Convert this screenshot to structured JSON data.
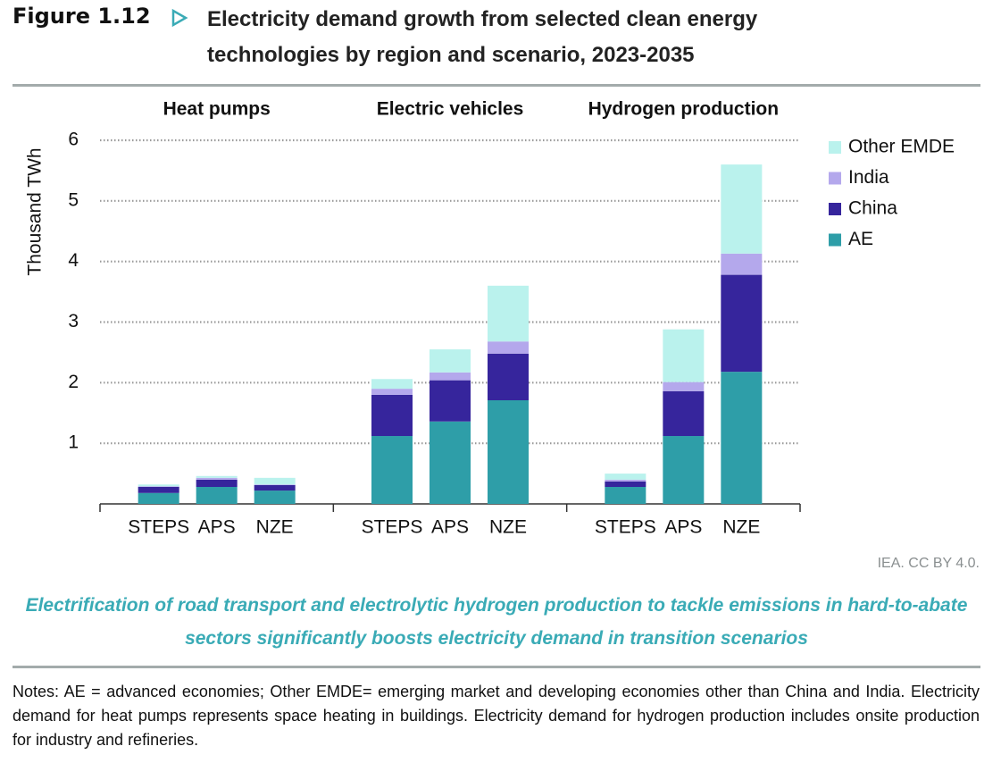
{
  "header": {
    "figure_label": "Figure 1.12",
    "title": "Electricity demand growth from selected clean energy technologies by region and scenario, 2023-2035"
  },
  "chart_data": {
    "type": "bar",
    "stacked": true,
    "groups": [
      "Heat pumps",
      "Electric vehicles",
      "Hydrogen production"
    ],
    "categories": [
      "STEPS",
      "APS",
      "NZE",
      "STEPS",
      "APS",
      "NZE",
      "STEPS",
      "APS",
      "NZE"
    ],
    "series": [
      {
        "name": "AE",
        "color": "#2e9ea8",
        "values": [
          0.18,
          0.28,
          0.22,
          1.12,
          1.36,
          1.71,
          0.28,
          1.12,
          2.18
        ]
      },
      {
        "name": "China",
        "color": "#36259c",
        "values": [
          0.1,
          0.12,
          0.09,
          0.68,
          0.68,
          0.77,
          0.09,
          0.74,
          1.6
        ]
      },
      {
        "name": "India",
        "color": "#b4a8ec",
        "values": [
          0.01,
          0.03,
          0.01,
          0.1,
          0.13,
          0.2,
          0.03,
          0.15,
          0.35
        ]
      },
      {
        "name": "Other EMDE",
        "color": "#baf2ed",
        "values": [
          0.03,
          0.03,
          0.11,
          0.16,
          0.38,
          0.92,
          0.1,
          0.87,
          1.47
        ]
      }
    ],
    "y_label": "Thousand TWh",
    "ylim": [
      0,
      6
    ],
    "yticks": [
      1,
      2,
      3,
      4,
      5,
      6
    ],
    "grid": true,
    "legend": "right"
  },
  "source": "IEA. CC BY 4.0.",
  "caption": "Electrification of road transport and electrolytic hydrogen production to tackle emissions in hard-to-abate sectors significantly boosts electricity demand in transition scenarios",
  "notes": "Notes: AE = advanced economies; Other EMDE= emerging market and developing economies other than China and India. Electricity demand for heat pumps represents space heating in buildings. Electricity demand for hydrogen production includes onsite production for industry and refineries."
}
